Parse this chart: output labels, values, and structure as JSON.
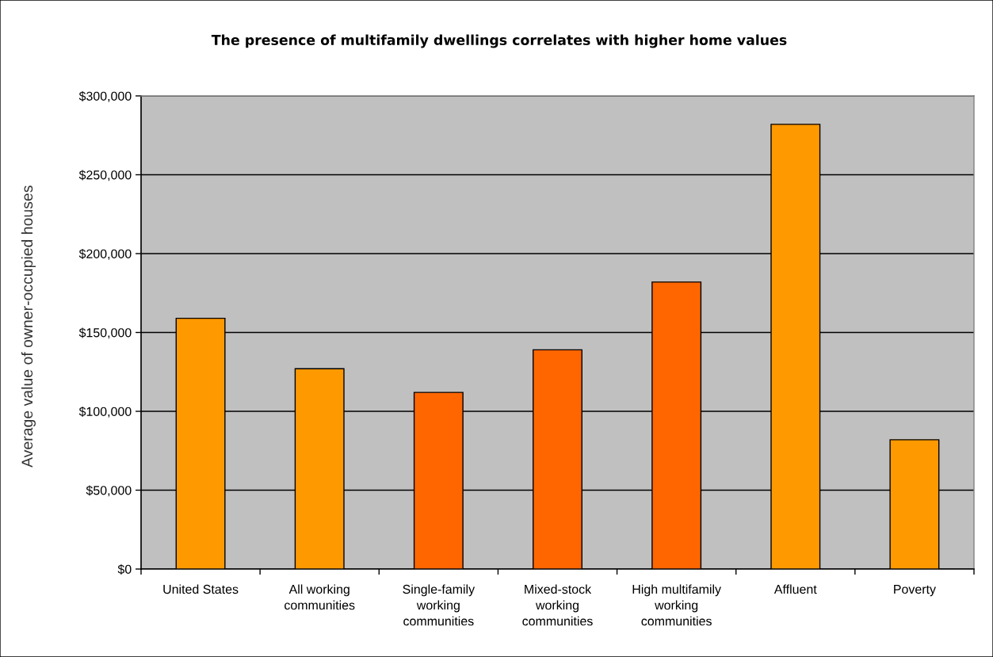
{
  "chart_data": {
    "type": "bar",
    "title": "The presence of multifamily dwellings correlates with higher home values",
    "ylabel": "Average value of owner-occupied houses",
    "categories": [
      "United States",
      "All working\ncommunities",
      "Single-family\nworking\ncommunities",
      "Mixed-stock\nworking\ncommunities",
      "High multifamily\nworking\ncommunities",
      "Affluent",
      "Poverty"
    ],
    "values": [
      159000,
      127000,
      112000,
      139000,
      182000,
      282000,
      82000
    ],
    "colors": [
      "#ff9900",
      "#ff9900",
      "#ff6600",
      "#ff6600",
      "#ff6600",
      "#ff9900",
      "#ff9900"
    ],
    "ylim": [
      0,
      300000
    ],
    "yticks": [
      {
        "value": 0,
        "label": "$0"
      },
      {
        "value": 50000,
        "label": "$50,000"
      },
      {
        "value": 100000,
        "label": "$100,000"
      },
      {
        "value": 150000,
        "label": "$150,000"
      },
      {
        "value": 200000,
        "label": "$200,000"
      },
      {
        "value": 250000,
        "label": "$250,000"
      },
      {
        "value": 300000,
        "label": "$300,000"
      }
    ],
    "grid": "y",
    "legend": false
  }
}
